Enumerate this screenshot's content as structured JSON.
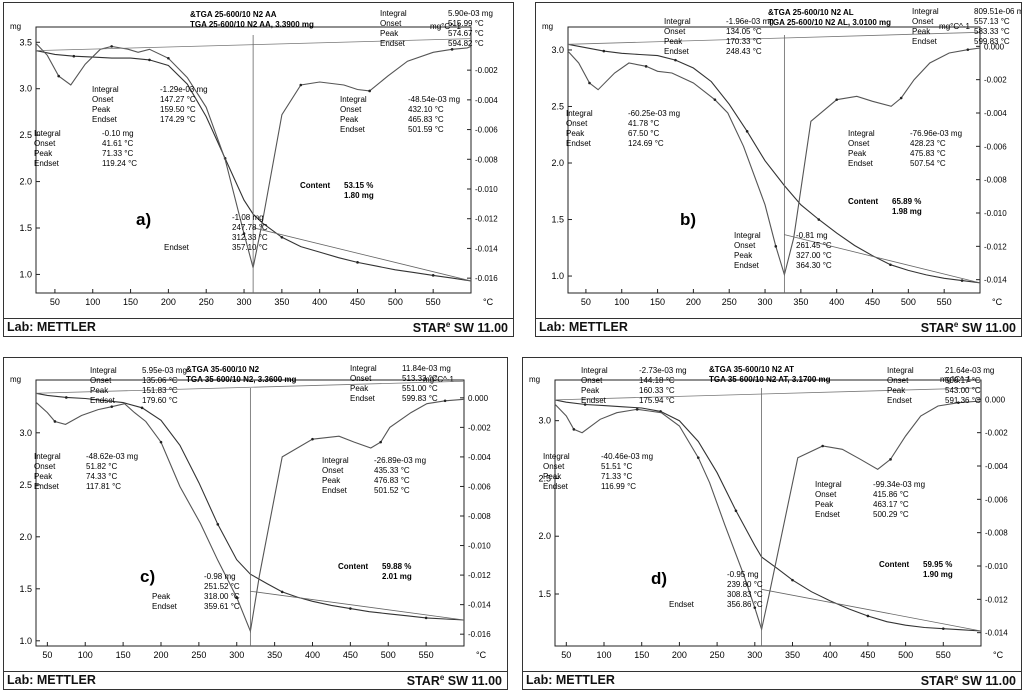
{
  "panels": [
    {
      "title": "&TGA 25-600/10 N2 AA",
      "subtitle": "TGA 25-600/10 N2 AA, 3.3900 mg",
      "letter": "a)",
      "lab": "Lab: METTLER",
      "star_main": "STAR",
      "star_sup": "e",
      "star_rest": " SW 11.00",
      "left_unit": "mg",
      "right_unit": "mg°C^-1",
      "x_unit": "°C",
      "x_ticks": [
        "50",
        "100",
        "150",
        "200",
        "250",
        "300",
        "350",
        "400",
        "450",
        "500",
        "550"
      ],
      "y_ticks": [
        "3.5",
        "3.0",
        "2.5",
        "2.0",
        "1.5",
        "1.0"
      ],
      "y2_ticks": [
        "-0.002",
        "-0.004",
        "-0.006",
        "-0.008",
        "-0.010",
        "-0.012",
        "-0.014",
        "-0.016"
      ],
      "annotations": [
        {
          "lines": [
            "Integral",
            "Onset",
            "Peak",
            "Endset"
          ],
          "values": [
            "-0.10 mg",
            "41.61 °C",
            "71.33 °C",
            "119.24 °C"
          ]
        },
        {
          "lines": [
            "Integral",
            "Onset",
            "Peak",
            "Endset"
          ],
          "values": [
            "-1.29e-03 mg",
            "147.27 °C",
            "159.50 °C",
            "174.29 °C"
          ]
        },
        {
          "lines": [
            "Integral",
            "Onset",
            "Peak",
            "Endset"
          ],
          "values": [
            "5.90e-03 mg",
            "515.99 °C",
            "574.67 °C",
            "594.82 °C"
          ]
        },
        {
          "lines": [
            "Integral",
            "Onset",
            "Peak",
            "Endset"
          ],
          "values": [
            "-48.54e-03 mg",
            "432.10 °C",
            "465.83 °C",
            "501.59 °C"
          ]
        },
        {
          "lines": [
            "",
            "",
            "",
            "Endset"
          ],
          "values": [
            "-1.08 mg",
            "247.78 °C",
            "312.33 °C",
            "357.10 °C"
          ]
        }
      ],
      "content": {
        "label": "Content",
        "percent": "53.15 %",
        "mg": "1.80 mg"
      },
      "chart_data": {
        "type": "line",
        "xlabel": "°C",
        "ylabel": "mg",
        "y2label": "mg°C^-1",
        "xlim": [
          25,
          600
        ],
        "ylim": [
          0.8,
          3.6
        ],
        "y2lim": [
          -0.017,
          0.0005
        ],
        "series": [
          {
            "x": [
              25,
              50,
              75,
              100,
              125,
              150,
              175,
              200,
              225,
              250,
              275,
              300,
              312,
              325,
              350,
              375,
              400,
              425,
              450,
              475,
              500,
              525,
              550,
              575,
              600
            ],
            "values": [
              3.41,
              3.37,
              3.35,
              3.34,
              3.33,
              3.33,
              3.31,
              3.25,
              3.05,
              2.7,
              2.25,
              1.8,
              1.65,
              1.55,
              1.4,
              1.3,
              1.24,
              1.18,
              1.13,
              1.09,
              1.05,
              1.02,
              0.99,
              0.96,
              0.93
            ]
          },
          {
            "axis": "right",
            "x": [
              25,
              40,
              55,
              71,
              90,
              110,
              125,
              147,
              160,
              175,
              200,
              225,
              250,
              275,
              300,
              312,
              325,
              350,
              375,
              400,
              432,
              450,
              466,
              490,
              516,
              550,
              575,
              595,
              600
            ],
            "values": [
              -0.0002,
              -0.001,
              -0.0024,
              -0.003,
              -0.0016,
              -0.0006,
              -0.0004,
              -0.0006,
              -0.0008,
              -0.0006,
              -0.0012,
              -0.0025,
              -0.0045,
              -0.008,
              -0.013,
              -0.0153,
              -0.012,
              -0.005,
              -0.003,
              -0.0028,
              -0.003,
              -0.0033,
              -0.0034,
              -0.0024,
              -0.0014,
              -0.0008,
              -0.0006,
              -0.0005,
              -0.0004
            ]
          }
        ]
      }
    },
    {
      "title": "&TGA 25-600/10 N2 AL",
      "subtitle": "TGA 25-600/10 N2 AL, 3.0100 mg",
      "letter": "b)",
      "lab": "Lab: METTLER",
      "star_main": "STAR",
      "star_sup": "e",
      "star_rest": " SW 11.00",
      "left_unit": "mg",
      "right_unit": "mg°C^-1",
      "x_unit": "°C",
      "x_ticks": [
        "50",
        "100",
        "150",
        "200",
        "250",
        "300",
        "350",
        "400",
        "450",
        "500",
        "550"
      ],
      "y_ticks": [
        "3.0",
        "2.5",
        "2.0",
        "1.5",
        "1.0"
      ],
      "y2_ticks": [
        "0.000",
        "-0.002",
        "-0.004",
        "-0.006",
        "-0.008",
        "-0.010",
        "-0.012",
        "-0.014"
      ],
      "annotations": [
        {
          "lines": [
            "Integral",
            "Onset",
            "Peak",
            "Endset"
          ],
          "values": [
            "-1.96e-03 mg",
            "134.05 °C",
            "170.33 °C",
            "248.43 °C"
          ]
        },
        {
          "lines": [
            "Integral",
            "Onset",
            "Peak",
            "Endset"
          ],
          "values": [
            "809.51e-06 mg",
            "557.13 °C",
            "583.33 °C",
            "599.83 °C"
          ]
        },
        {
          "lines": [
            "Integral",
            "Onset",
            "Peak",
            "Endset"
          ],
          "values": [
            "-60.25e-03 mg",
            "41.78 °C",
            "67.50 °C",
            "124.69 °C"
          ]
        },
        {
          "lines": [
            "Integral",
            "Onset",
            "Peak",
            "Endset"
          ],
          "values": [
            "-76.96e-03 mg",
            "428.23 °C",
            "475.83 °C",
            "507.54 °C"
          ]
        },
        {
          "lines": [
            "Integral",
            "Onset",
            "Peak",
            "Endset"
          ],
          "values": [
            "-0.81 mg",
            "261.45 °C",
            "327.00 °C",
            "364.30 °C"
          ]
        }
      ],
      "content": {
        "label": "Content",
        "percent": "65.89 %",
        "mg": "1.98 mg"
      },
      "chart_data": {
        "type": "line",
        "xlabel": "°C",
        "ylabel": "mg",
        "y2label": "mg°C^-1",
        "xlim": [
          25,
          600
        ],
        "ylim": [
          0.85,
          3.15
        ],
        "y2lim": [
          -0.0148,
          0.0008
        ],
        "series": [
          {
            "x": [
              25,
              50,
              75,
              100,
              125,
              150,
              175,
              200,
              225,
              250,
              275,
              300,
              327,
              350,
              375,
              400,
              425,
              450,
              475,
              500,
              525,
              550,
              575,
              600
            ],
            "values": [
              3.05,
              3.02,
              2.99,
              2.97,
              2.96,
              2.95,
              2.91,
              2.84,
              2.72,
              2.52,
              2.28,
              2.02,
              1.8,
              1.63,
              1.5,
              1.38,
              1.27,
              1.18,
              1.1,
              1.05,
              1.01,
              0.98,
              0.96,
              0.94
            ]
          },
          {
            "axis": "right",
            "x": [
              25,
              40,
              55,
              67,
              90,
              110,
              134,
              150,
              170,
              200,
              230,
              248,
              270,
              300,
              315,
              327,
              340,
              364,
              400,
              428,
              450,
              476,
              490,
              508,
              530,
              557,
              583,
              600
            ],
            "values": [
              -0.0003,
              -0.001,
              -0.0022,
              -0.0026,
              -0.0016,
              -0.001,
              -0.0012,
              -0.0015,
              -0.0016,
              -0.0022,
              -0.0032,
              -0.004,
              -0.006,
              -0.0095,
              -0.012,
              -0.0137,
              -0.0115,
              -0.0045,
              -0.0032,
              -0.003,
              -0.0033,
              -0.0036,
              -0.0031,
              -0.002,
              -0.001,
              -0.0004,
              -0.0002,
              -0.0001
            ]
          }
        ]
      }
    },
    {
      "title": "&TGA 35-600/10 N2",
      "subtitle": "TGA 35-600/10 N2, 3.3600 mg",
      "letter": "c)",
      "lab": "Lab: METTLER",
      "star_main": "STAR",
      "star_sup": "e",
      "star_rest": " SW 11.00",
      "left_unit": "mg",
      "right_unit": "mg°C^-1",
      "x_unit": "°C",
      "x_ticks": [
        "50",
        "100",
        "150",
        "200",
        "250",
        "300",
        "350",
        "400",
        "450",
        "500",
        "550"
      ],
      "y_ticks": [
        "3.0",
        "2.5",
        "2.0",
        "1.5",
        "1.0"
      ],
      "y2_ticks": [
        "0.000",
        "-0.002",
        "-0.004",
        "-0.006",
        "-0.008",
        "-0.010",
        "-0.012",
        "-0.014",
        "-0.016"
      ],
      "annotations": [
        {
          "lines": [
            "Integral",
            "Onset",
            "Peak",
            "Endset"
          ],
          "values": [
            "5.95e-03 mg",
            "135.06 °C",
            "151.83 °C",
            "179.60 °C"
          ]
        },
        {
          "lines": [
            "Integral",
            "Onset",
            "Peak",
            "Endset"
          ],
          "values": [
            "11.84e-03 mg",
            "513.33 °C",
            "551.00 °C",
            "599.83 °C"
          ]
        },
        {
          "lines": [
            "Integral",
            "Onset",
            "Peak",
            "Endset"
          ],
          "values": [
            "-48.62e-03 mg",
            "51.82 °C",
            "74.33 °C",
            "117.81 °C"
          ]
        },
        {
          "lines": [
            "Integral",
            "Onset",
            "Peak",
            "Endset"
          ],
          "values": [
            "-26.89e-03 mg",
            "435.33 °C",
            "476.83 °C",
            "501.52 °C"
          ]
        },
        {
          "lines": [
            "",
            "",
            "Peak",
            "Endset"
          ],
          "values": [
            "-0.98 mg",
            "251.52 °C",
            "318.00 °C",
            "359.61 °C"
          ]
        }
      ],
      "content": {
        "label": "Content",
        "percent": "59.88 %",
        "mg": "2.01 mg"
      },
      "chart_data": {
        "type": "line",
        "xlabel": "°C",
        "ylabel": "mg",
        "y2label": "mg°C^-1",
        "xlim": [
          35,
          600
        ],
        "ylim": [
          0.95,
          3.45
        ],
        "y2lim": [
          -0.0168,
          0.0008
        ],
        "series": [
          {
            "x": [
              35,
              50,
              75,
              100,
              125,
              150,
              175,
              200,
              225,
              250,
              275,
              300,
              318,
              340,
              360,
              380,
              400,
              425,
              450,
              475,
              500,
              525,
              550,
              575,
              600
            ],
            "values": [
              3.38,
              3.36,
              3.34,
              3.33,
              3.31,
              3.29,
              3.24,
              3.12,
              2.88,
              2.52,
              2.12,
              1.78,
              1.64,
              1.55,
              1.47,
              1.42,
              1.38,
              1.34,
              1.31,
              1.28,
              1.26,
              1.24,
              1.22,
              1.21,
              1.2
            ]
          },
          {
            "axis": "right",
            "x": [
              35,
              50,
              60,
              74,
              95,
              117,
              135,
              152,
              165,
              180,
              200,
              225,
              252,
              275,
              300,
              318,
              330,
              360,
              400,
              435,
              455,
              477,
              490,
              502,
              530,
              551,
              575,
              600
            ],
            "values": [
              -0.0003,
              -0.001,
              -0.0016,
              -0.0018,
              -0.0012,
              -0.0008,
              -0.0006,
              -0.0004,
              -0.001,
              -0.0016,
              -0.003,
              -0.006,
              -0.0085,
              -0.011,
              -0.0135,
              -0.0158,
              -0.012,
              -0.004,
              -0.0028,
              -0.0026,
              -0.003,
              -0.0034,
              -0.003,
              -0.002,
              -0.001,
              -0.0004,
              -0.0002,
              -0.0001
            ]
          }
        ]
      }
    },
    {
      "title": "&TGA 35-600/10 N2 AT",
      "subtitle": "TGA 35-600/10 N2 AT, 3.1700 mg",
      "letter": "d)",
      "lab": "Lab: METTLER",
      "star_main": "STAR",
      "star_sup": "e",
      "star_rest": " SW 11.00",
      "left_unit": "mg",
      "right_unit": "mg°C^-1",
      "x_unit": "°C",
      "x_ticks": [
        "50",
        "100",
        "150",
        "200",
        "250",
        "300",
        "350",
        "400",
        "450",
        "500",
        "550"
      ],
      "y_ticks": [
        "3.0",
        "2.5",
        "2.0",
        "1.5"
      ],
      "y2_ticks": [
        "0.000",
        "-0.002",
        "-0.004",
        "-0.006",
        "-0.008",
        "-0.010",
        "-0.012",
        "-0.014"
      ],
      "annotations": [
        {
          "lines": [
            "Integral",
            "Onset",
            "Peak",
            "Endset"
          ],
          "values": [
            "-2.73e-03 mg",
            "144.18 °C",
            "160.33 °C",
            "175.94 °C"
          ]
        },
        {
          "lines": [
            "Integral",
            "Onset",
            "Peak",
            "Endset"
          ],
          "values": [
            "21.64e-03 mg",
            "508.17 °C",
            "543.00 °C",
            "591.36 °C"
          ]
        },
        {
          "lines": [
            "Integral",
            "Onset",
            "Peak",
            "Endset"
          ],
          "values": [
            "-40.46e-03 mg",
            "51.51 °C",
            "71.33 °C",
            "116.99 °C"
          ]
        },
        {
          "lines": [
            "Integral",
            "Onset",
            "Peak",
            "Endset"
          ],
          "values": [
            "-99.34e-03 mg",
            "415.86 °C",
            "463.17 °C",
            "500.29 °C"
          ]
        },
        {
          "lines": [
            "",
            "",
            "",
            "Endset"
          ],
          "values": [
            "-0.95 mg",
            "239.80 °C",
            "308.83 °C",
            "356.86 °C"
          ]
        }
      ],
      "content": {
        "label": "Content",
        "percent": "59.95 %",
        "mg": "1.90 mg"
      },
      "chart_data": {
        "type": "line",
        "xlabel": "°C",
        "ylabel": "mg",
        "y2label": "mg°C^-1",
        "xlim": [
          35,
          600
        ],
        "ylim": [
          1.05,
          3.3
        ],
        "y2lim": [
          -0.0148,
          0.0008
        ],
        "series": [
          {
            "x": [
              35,
              50,
              75,
              100,
              125,
              150,
              175,
              200,
              225,
              250,
              275,
              300,
              309,
              330,
              350,
              375,
              400,
              425,
              450,
              475,
              500,
              525,
              550,
              575,
              600
            ],
            "values": [
              3.18,
              3.16,
              3.14,
              3.13,
              3.12,
              3.11,
              3.08,
              3.0,
              2.82,
              2.55,
              2.22,
              1.92,
              1.82,
              1.72,
              1.62,
              1.52,
              1.44,
              1.37,
              1.31,
              1.26,
              1.23,
              1.21,
              1.2,
              1.19,
              1.18
            ]
          },
          {
            "axis": "right",
            "x": [
              35,
              50,
              60,
              71,
              95,
              117,
              144,
              160,
              176,
              200,
              225,
              240,
              260,
              285,
              300,
              309,
              320,
              357,
              390,
              416,
              440,
              463,
              480,
              500,
              520,
              543,
              570,
              600
            ],
            "values": [
              -0.0003,
              -0.001,
              -0.0018,
              -0.002,
              -0.0012,
              -0.0008,
              -0.0006,
              -0.0007,
              -0.0008,
              -0.0016,
              -0.0035,
              -0.005,
              -0.0075,
              -0.0105,
              -0.0125,
              -0.0138,
              -0.0115,
              -0.0035,
              -0.0028,
              -0.003,
              -0.0036,
              -0.0042,
              -0.0036,
              -0.0022,
              -0.001,
              -0.0004,
              -0.0002,
              -0.0001
            ]
          }
        ]
      }
    }
  ]
}
